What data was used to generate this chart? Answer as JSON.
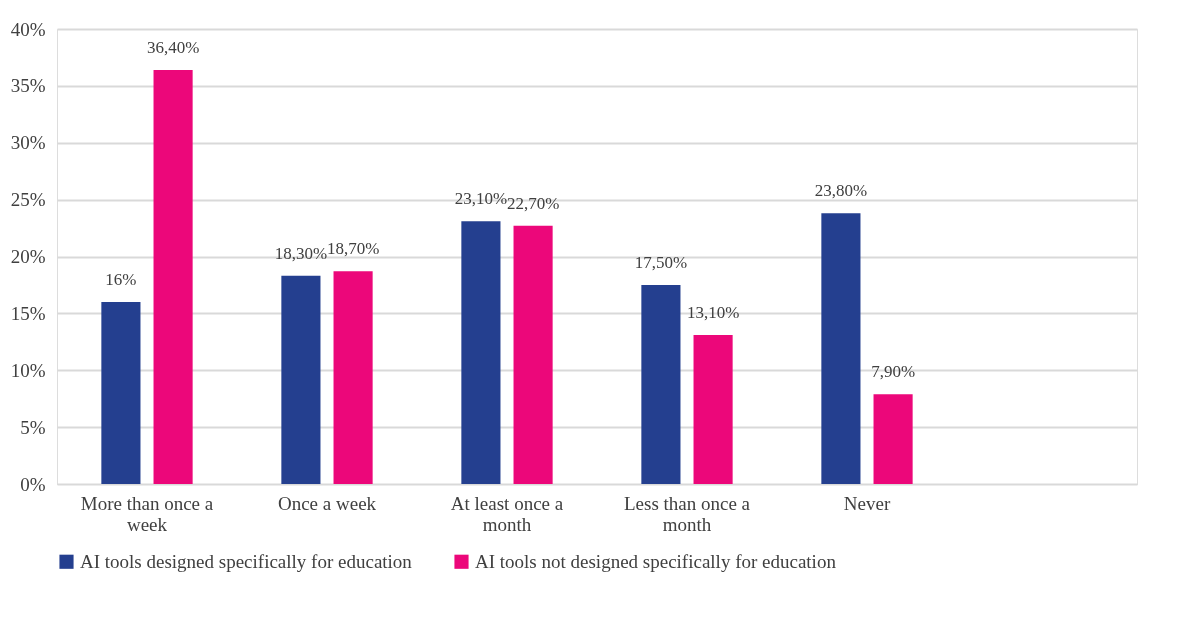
{
  "chart_data": {
    "type": "bar",
    "categories": [
      "More than once a week",
      "Once a week",
      "At least once a month",
      "Less than once a month",
      "Never",
      null
    ],
    "series": [
      {
        "name": "AI tools designed specifically for education",
        "color": "#243f8f",
        "values": [
          16,
          18.3,
          23.1,
          17.5,
          23.8,
          null
        ],
        "value_labels": [
          "16%",
          "18,30%",
          "23,10%",
          "17,50%",
          "23,80%",
          null
        ]
      },
      {
        "name": "AI tools not designed specifically for education",
        "color": "#ec077a",
        "values": [
          36.4,
          18.7,
          22.7,
          13.1,
          7.9,
          null
        ],
        "value_labels": [
          "36,40%",
          "18,70%",
          "22,70%",
          "13,10%",
          "7,90%",
          null
        ]
      }
    ],
    "ylim": [
      0,
      40
    ],
    "yticks": [
      {
        "value": 0,
        "label": "0%"
      },
      {
        "value": 5,
        "label": "5%"
      },
      {
        "value": 10,
        "label": "10%"
      },
      {
        "value": 15,
        "label": "15%"
      },
      {
        "value": 20,
        "label": "20%"
      },
      {
        "value": 25,
        "label": "25%"
      },
      {
        "value": 30,
        "label": "30%"
      },
      {
        "value": 35,
        "label": "35%"
      },
      {
        "value": 40,
        "label": "40%"
      }
    ],
    "grid": "y",
    "legend": "bottom"
  }
}
